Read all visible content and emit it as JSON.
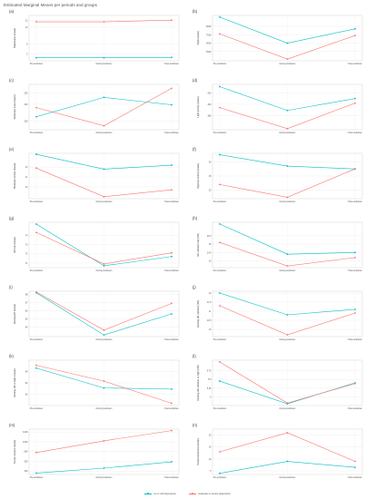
{
  "figure_title": "Estimated Marginal Means per periods and groups",
  "colors": {
    "no_mild": "#00BFC4",
    "mod_severe": "#F8766D"
  },
  "legend": {
    "no_mild": "no or mild depression",
    "mod_severe": "moderate or severe depression"
  },
  "chart_data": [
    {
      "panel": "(a)",
      "type": "line",
      "ylabel": "Depression (mean)",
      "categories": [
        "Pre-lockdown",
        "During lockdown",
        "Post-lockdown"
      ],
      "yticks": [
        2,
        5,
        10,
        12
      ],
      "ylim": [
        0,
        13.5
      ],
      "series": [
        {
          "values": [
            0.9,
            0.9,
            1.0
          ]
        },
        {
          "values": [
            11.6,
            11.6,
            12.1
          ]
        }
      ]
    },
    {
      "panel": "(b)",
      "type": "line",
      "ylabel": "Steps (mean)",
      "categories": [
        "Pre-lockdown",
        "During lockdown",
        "Post-lockdown"
      ],
      "yticks": [
        5000,
        6000,
        7000,
        8000
      ],
      "ylim": [
        3900,
        9300
      ],
      "series": [
        {
          "values": [
            9100,
            6000,
            7700
          ]
        },
        {
          "values": [
            7100,
            4100,
            6900
          ]
        }
      ]
    },
    {
      "panel": "(c)",
      "type": "line",
      "ylabel": "Sedentary state (mean)",
      "categories": [
        "Pre-lockdown",
        "During lockdown",
        "Post-lockdown"
      ],
      "yticks": [
        200,
        230,
        250
      ],
      "ylim": [
        185,
        265
      ],
      "series": [
        {
          "values": [
            208,
            242,
            229
          ]
        },
        {
          "values": [
            224,
            192,
            258
          ]
        }
      ]
    },
    {
      "panel": "(d)",
      "type": "line",
      "ylabel": "Light activity (mean)",
      "categories": [
        "Pre-lockdown",
        "During lockdown",
        "Post-lockdown"
      ],
      "yticks": [
        380,
        400,
        420
      ],
      "ylim": [
        355,
        435
      ],
      "series": [
        {
          "values": [
            431,
            389,
            410
          ]
        },
        {
          "values": [
            394,
            357,
            402
          ]
        }
      ]
    },
    {
      "panel": "(e)",
      "type": "line",
      "ylabel": "Moderate activity (mean)",
      "categories": [
        "Pre-lockdown",
        "During lockdown",
        "Post-lockdown"
      ],
      "yticks": [
        10,
        11,
        12
      ],
      "ylim": [
        8.8,
        13.4
      ],
      "series": [
        {
          "values": [
            13.3,
            11.8,
            12.2
          ]
        },
        {
          "values": [
            11.9,
            9.0,
            9.7
          ]
        }
      ]
    },
    {
      "panel": "(f)",
      "type": "line",
      "ylabel": "Vigorous activity (mean)",
      "categories": [
        "Pre-lockdown",
        "During lockdown",
        "Post-lockdown"
      ],
      "yticks": [
        20,
        25,
        30
      ],
      "ylim": [
        17,
        33
      ],
      "series": [
        {
          "values": [
            32.5,
            28.5,
            27.5
          ]
        },
        {
          "values": [
            22,
            17.5,
            27.5
          ]
        }
      ]
    },
    {
      "panel": "(g)",
      "type": "line",
      "ylabel": "HR rest (mean)",
      "categories": [
        "Pre-lockdown",
        "During lockdown",
        "Post-lockdown"
      ],
      "yticks": [
        71,
        72,
        73,
        74
      ],
      "ylim": [
        70.5,
        75.4
      ],
      "series": [
        {
          "values": [
            75.2,
            70.7,
            71.7
          ]
        },
        {
          "values": [
            74.3,
            70.9,
            72.1
          ]
        }
      ]
    },
    {
      "panel": "(h)",
      "type": "line",
      "ylabel": "HR variation day (SD)",
      "categories": [
        "Pre-lockdown",
        "During lockdown",
        "Post-lockdown"
      ],
      "yticks": [
        14.0,
        14.5,
        15.0,
        15.5
      ],
      "ylim": [
        13.6,
        16.3
      ],
      "series": [
        {
          "values": [
            16.2,
            14.4,
            14.5
          ]
        },
        {
          "values": [
            15.1,
            13.7,
            14.2
          ]
        }
      ]
    },
    {
      "panel": "(i)",
      "type": "line",
      "ylabel": "Resting HR (mean)",
      "categories": [
        "Pre-lockdown",
        "During lockdown",
        "Post-lockdown"
      ],
      "yticks": [
        64,
        65,
        66,
        67,
        68
      ],
      "ylim": [
        62.8,
        68.4
      ],
      "series": [
        {
          "values": [
            68.2,
            63.0,
            65.6
          ]
        },
        {
          "values": [
            68.3,
            63.6,
            66.9
          ]
        }
      ]
    },
    {
      "panel": "(j)",
      "type": "line",
      "ylabel": "Resting HR variation (SD)",
      "categories": [
        "Pre-lockdown",
        "During lockdown",
        "Post-lockdown"
      ],
      "yticks": [
        10.0,
        10.5,
        11.0,
        11.5,
        12.0
      ],
      "ylim": [
        9.6,
        12.1
      ],
      "series": [
        {
          "values": [
            12.0,
            10.8,
            11.1
          ]
        },
        {
          "values": [
            11.3,
            9.7,
            10.9
          ]
        }
      ]
    },
    {
      "panel": "(k)",
      "type": "line",
      "ylabel": "Resting HR at night (mean)",
      "categories": [
        "Pre-lockdown",
        "During lockdown",
        "Post-lockdown"
      ],
      "yticks": [
        60,
        62,
        64
      ],
      "ylim": [
        58,
        66
      ],
      "series": [
        {
          "values": [
            64.6,
            61.1,
            60.9
          ]
        },
        {
          "values": [
            65.1,
            62.3,
            58.4
          ]
        }
      ]
    },
    {
      "panel": "(l)",
      "type": "line",
      "ylabel": "Resting HR variation at night (SD)",
      "categories": [
        "Pre-lockdown",
        "During lockdown",
        "Post-lockdown"
      ],
      "yticks": [
        5.0,
        5.25,
        5.5,
        5.75
      ],
      "ylim": [
        4.75,
        6.05
      ],
      "series": [
        {
          "values": [
            5.45,
            4.8,
            5.4
          ]
        },
        {
          "values": [
            6.0,
            4.82,
            5.38
          ]
        }
      ]
    },
    {
      "panel": "(m)",
      "type": "line",
      "ylabel": "Social contacts (mean)",
      "categories": [
        "Pre-lockdown",
        "During lockdown",
        "Post-lockdown"
      ],
      "yticks": [
        400,
        600,
        800,
        1000,
        1200
      ],
      "ylim": [
        330,
        1260
      ],
      "series": [
        {
          "values": [
            360,
            460,
            590
          ]
        },
        {
          "values": [
            780,
            1020,
            1230
          ]
        }
      ]
    },
    {
      "panel": "(n)",
      "type": "line",
      "ylabel": "Social interactions (mean)",
      "categories": [
        "Pre-lockdown",
        "During lockdown",
        "Post-lockdown"
      ],
      "yticks": [
        5,
        10,
        15,
        20
      ],
      "ylim": [
        3.5,
        22.5
      ],
      "series": [
        {
          "values": [
            4.0,
            9.0,
            6.5
          ]
        },
        {
          "values": [
            13.0,
            21.0,
            9.0
          ]
        }
      ]
    }
  ]
}
